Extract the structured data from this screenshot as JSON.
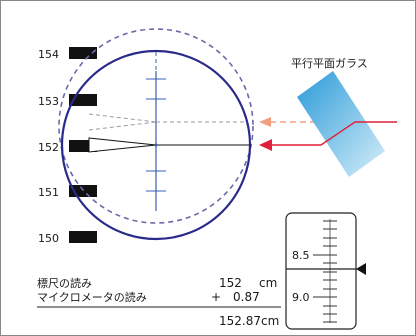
{
  "staff": {
    "marks": [
      {
        "label": "154"
      },
      {
        "label": "153"
      },
      {
        "label": "152"
      },
      {
        "label": "151"
      },
      {
        "label": "150"
      }
    ]
  },
  "glass_label": "平行平面ガラス",
  "micrometer": {
    "scale_labels": [
      "8.5",
      "9.0"
    ]
  },
  "readings": {
    "staff_label": "標尺の読み",
    "staff_value": "152",
    "staff_unit": "cm",
    "micrometer_label": "マイクロメータの読み",
    "micrometer_op": "+",
    "micrometer_value": "0.87",
    "total": "152.87cm"
  },
  "colors": {
    "circle": "#2a2a8a",
    "dashed_circle": "#6a6aaa",
    "reticle": "#3a5fb0",
    "arrow_red": "#e0203a",
    "arrow_orange": "#f0a080",
    "glass_top": "#2a9ad8",
    "glass_bottom": "#cfeaf8"
  }
}
